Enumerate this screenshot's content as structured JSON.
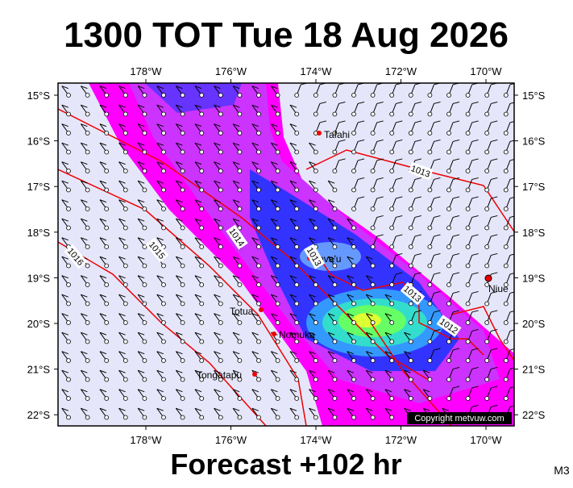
{
  "header": {
    "title": "1300 TOT Tue 18 Aug 2026"
  },
  "map": {
    "lon_labels": [
      "178°W",
      "176°W",
      "174°W",
      "172°W",
      "170°W"
    ],
    "lat_labels": [
      "15°S",
      "16°S",
      "17°S",
      "18°S",
      "19°S",
      "20°S",
      "21°S",
      "22°S"
    ],
    "places": [
      "Tafahi",
      "Vava'u",
      "Niue",
      "Totua",
      "Nomuka",
      "Tongatapu"
    ],
    "isobar_labels": [
      "1016",
      "1015",
      "1014",
      "1013",
      "1013",
      "1013",
      "1012"
    ],
    "copyright": "Copyright metvuw.com"
  },
  "footer": {
    "forecast": "Forecast +102 hr",
    "model": "M3"
  }
}
